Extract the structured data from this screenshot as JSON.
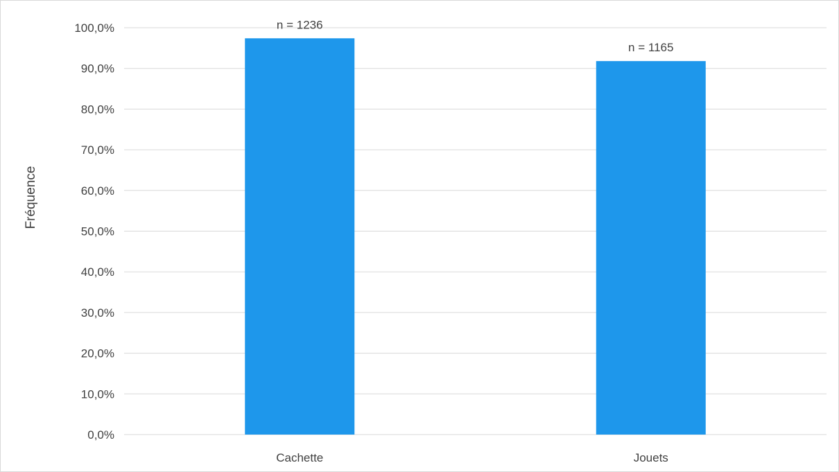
{
  "chart_data": {
    "type": "bar",
    "categories": [
      "Cachette",
      "Jouets"
    ],
    "values": [
      97.4,
      91.8
    ],
    "data_labels": [
      "n = 1236",
      "n = 1165"
    ],
    "title": "",
    "xlabel": "",
    "ylabel": "Fréquence",
    "ylim": [
      0,
      100
    ],
    "y_ticks": [
      "0,0%",
      "10,0%",
      "20,0%",
      "30,0%",
      "40,0%",
      "50,0%",
      "60,0%",
      "70,0%",
      "80,0%",
      "90,0%",
      "100,0%"
    ],
    "grid": true,
    "bar_color": "#1e97eb",
    "grid_color": "#d9d9d9"
  }
}
